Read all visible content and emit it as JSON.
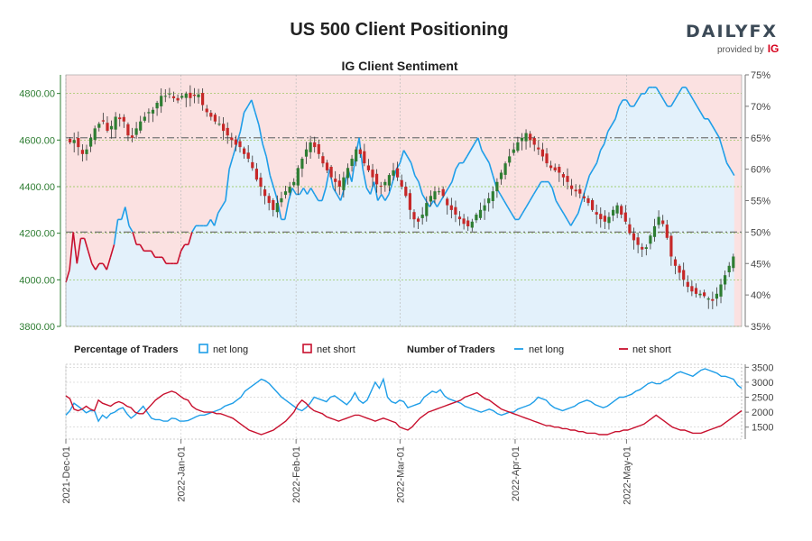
{
  "header": {
    "title": "US 500 Client Positioning",
    "logo_text": "DAILYFX",
    "logo_sub": "provided by",
    "logo_brand": "IG"
  },
  "colors": {
    "net_long": "#1f9ee8",
    "net_short": "#c8102e",
    "candle_up": "#2e7d32",
    "candle_down": "#c62828",
    "short_fill": "#fbe1e1",
    "long_fill": "#e3f1fb",
    "left_axis": "#2e7d32"
  },
  "chart_data": [
    {
      "type": "candlestick",
      "title": "IG Client Sentiment",
      "left_axis": {
        "ticks": [
          "3800.00",
          "4000.00",
          "4200.00",
          "4400.00",
          "4600.00",
          "4800.00"
        ],
        "ylim": [
          3800,
          4880
        ]
      },
      "right_axis": {
        "ticks": [
          "35%",
          "40%",
          "45%",
          "50%",
          "55%",
          "60%",
          "65%",
          "70%",
          "75%"
        ],
        "ylim": [
          35,
          75
        ],
        "unit": "%"
      },
      "reference_lines": [
        {
          "value": 50,
          "axis": "right"
        },
        {
          "value": 65,
          "axis": "right"
        }
      ],
      "x_range": [
        0,
        182
      ],
      "x_ticks": [
        {
          "x": 0,
          "label": "2021-Dec-01"
        },
        {
          "x": 31,
          "label": "2022-Jan-01"
        },
        {
          "x": 62,
          "label": "2022-Feb-01"
        },
        {
          "x": 90,
          "label": "2022-Mar-01"
        },
        {
          "x": 121,
          "label": "2022-Apr-01"
        },
        {
          "x": 151,
          "label": "2022-May-01"
        }
      ],
      "net_long_pct": [
        [
          0,
          42
        ],
        [
          1,
          44
        ],
        [
          2,
          50
        ],
        [
          3,
          45
        ],
        [
          4,
          49
        ],
        [
          5,
          49
        ],
        [
          6,
          47
        ],
        [
          7,
          45
        ],
        [
          8,
          44
        ],
        [
          9,
          45
        ],
        [
          10,
          45
        ],
        [
          11,
          44
        ],
        [
          12,
          46
        ],
        [
          13,
          48
        ],
        [
          14,
          52
        ],
        [
          15,
          52
        ],
        [
          16,
          54
        ],
        [
          17,
          51
        ],
        [
          18,
          50
        ],
        [
          19,
          48
        ],
        [
          20,
          48
        ],
        [
          21,
          47
        ],
        [
          22,
          47
        ],
        [
          23,
          47
        ],
        [
          24,
          46
        ],
        [
          25,
          46
        ],
        [
          26,
          46
        ],
        [
          27,
          45
        ],
        [
          28,
          45
        ],
        [
          29,
          45
        ],
        [
          30,
          45
        ],
        [
          31,
          47
        ],
        [
          32,
          48
        ],
        [
          33,
          48
        ],
        [
          34,
          50
        ],
        [
          35,
          51
        ],
        [
          36,
          51
        ],
        [
          37,
          51
        ],
        [
          38,
          51
        ],
        [
          39,
          52
        ],
        [
          40,
          51
        ],
        [
          41,
          53
        ],
        [
          42,
          54
        ],
        [
          43,
          55
        ],
        [
          44,
          60
        ],
        [
          45,
          62
        ],
        [
          46,
          64
        ],
        [
          47,
          66
        ],
        [
          48,
          69
        ],
        [
          49,
          70
        ],
        [
          50,
          71
        ],
        [
          51,
          69
        ],
        [
          52,
          67
        ],
        [
          53,
          64
        ],
        [
          54,
          62
        ],
        [
          55,
          59
        ],
        [
          56,
          57
        ],
        [
          57,
          55
        ],
        [
          58,
          52
        ],
        [
          59,
          52
        ],
        [
          60,
          55
        ],
        [
          61,
          57
        ],
        [
          62,
          56
        ],
        [
          63,
          56
        ],
        [
          64,
          57
        ],
        [
          65,
          56
        ],
        [
          66,
          57
        ],
        [
          67,
          56
        ],
        [
          68,
          55
        ],
        [
          69,
          55
        ],
        [
          70,
          57
        ],
        [
          71,
          60
        ],
        [
          72,
          57
        ],
        [
          73,
          56
        ],
        [
          74,
          55
        ],
        [
          75,
          57
        ],
        [
          76,
          60
        ],
        [
          77,
          58
        ],
        [
          78,
          62
        ],
        [
          79,
          65
        ],
        [
          80,
          60
        ],
        [
          81,
          57
        ],
        [
          82,
          56
        ],
        [
          83,
          58
        ],
        [
          84,
          55
        ],
        [
          85,
          56
        ],
        [
          86,
          55
        ],
        [
          87,
          56
        ],
        [
          88,
          58
        ],
        [
          89,
          60
        ],
        [
          90,
          61
        ],
        [
          91,
          63
        ],
        [
          92,
          62
        ],
        [
          93,
          61
        ],
        [
          94,
          59
        ],
        [
          95,
          58
        ],
        [
          96,
          56
        ],
        [
          97,
          55
        ],
        [
          98,
          54
        ],
        [
          99,
          55
        ],
        [
          100,
          54
        ],
        [
          101,
          55
        ],
        [
          102,
          56
        ],
        [
          103,
          57
        ],
        [
          104,
          58
        ],
        [
          105,
          60
        ],
        [
          106,
          61
        ],
        [
          107,
          61
        ],
        [
          108,
          62
        ],
        [
          109,
          63
        ],
        [
          110,
          64
        ],
        [
          111,
          65
        ],
        [
          112,
          63
        ],
        [
          113,
          62
        ],
        [
          114,
          61
        ],
        [
          115,
          59
        ],
        [
          116,
          57
        ],
        [
          117,
          56
        ],
        [
          118,
          55
        ],
        [
          119,
          54
        ],
        [
          120,
          53
        ],
        [
          121,
          52
        ],
        [
          122,
          52
        ],
        [
          123,
          53
        ],
        [
          124,
          54
        ],
        [
          125,
          55
        ],
        [
          126,
          56
        ],
        [
          127,
          57
        ],
        [
          128,
          58
        ],
        [
          129,
          58
        ],
        [
          130,
          58
        ],
        [
          131,
          57
        ],
        [
          132,
          55
        ],
        [
          133,
          54
        ],
        [
          134,
          53
        ],
        [
          135,
          52
        ],
        [
          136,
          51
        ],
        [
          137,
          52
        ],
        [
          138,
          53
        ],
        [
          139,
          55
        ],
        [
          140,
          57
        ],
        [
          141,
          59
        ],
        [
          142,
          60
        ],
        [
          143,
          61
        ],
        [
          144,
          63
        ],
        [
          145,
          64
        ],
        [
          146,
          66
        ],
        [
          147,
          67
        ],
        [
          148,
          68
        ],
        [
          149,
          70
        ],
        [
          150,
          71
        ],
        [
          151,
          71
        ],
        [
          152,
          70
        ],
        [
          153,
          70
        ],
        [
          154,
          71
        ],
        [
          155,
          72
        ],
        [
          156,
          72
        ],
        [
          157,
          73
        ],
        [
          158,
          73
        ],
        [
          159,
          73
        ],
        [
          160,
          72
        ],
        [
          161,
          71
        ],
        [
          162,
          70
        ],
        [
          163,
          70
        ],
        [
          164,
          71
        ],
        [
          165,
          72
        ],
        [
          166,
          73
        ],
        [
          167,
          73
        ],
        [
          168,
          72
        ],
        [
          169,
          71
        ],
        [
          170,
          70
        ],
        [
          171,
          69
        ],
        [
          172,
          68
        ],
        [
          173,
          68
        ],
        [
          174,
          67
        ],
        [
          175,
          66
        ],
        [
          176,
          65
        ],
        [
          177,
          63
        ],
        [
          178,
          61
        ],
        [
          179,
          60
        ],
        [
          180,
          59
        ]
      ],
      "price": [
        4590,
        4600,
        4570,
        4540,
        4560,
        4610,
        4650,
        4670,
        4680,
        4640,
        4660,
        4700,
        4690,
        4680,
        4620,
        4610,
        4650,
        4680,
        4700,
        4720,
        4730,
        4760,
        4790,
        4790,
        4800,
        4780,
        4770,
        4790,
        4800,
        4780,
        4790,
        4796,
        4750,
        4720,
        4700,
        4680,
        4670,
        4640,
        4620,
        4600,
        4580,
        4570,
        4540,
        4520,
        4480,
        4430,
        4400,
        4360,
        4330,
        4300,
        4330,
        4350,
        4380,
        4400,
        4420,
        4480,
        4520,
        4560,
        4590,
        4570,
        4540,
        4500,
        4470,
        4440,
        4420,
        4400,
        4440,
        4480,
        4520,
        4560,
        4540,
        4500,
        4470,
        4440,
        4410,
        4400,
        4420,
        4450,
        4470,
        4440,
        4400,
        4360,
        4300,
        4260,
        4250,
        4280,
        4330,
        4360,
        4380,
        4380,
        4360,
        4320,
        4300,
        4280,
        4260,
        4240,
        4230,
        4250,
        4280,
        4300,
        4320,
        4350,
        4380,
        4420,
        4460,
        4500,
        4530,
        4560,
        4590,
        4610,
        4630,
        4600,
        4580,
        4560,
        4530,
        4500,
        4480,
        4470,
        4460,
        4440,
        4420,
        4390,
        4380,
        4370,
        4350,
        4330,
        4300,
        4280,
        4260,
        4250,
        4270,
        4300,
        4320,
        4280,
        4250,
        4200,
        4170,
        4150,
        4130,
        4140,
        4190,
        4230,
        4270,
        4240,
        4180,
        4100,
        4060,
        4030,
        4000,
        3970,
        3950,
        3940,
        3940,
        3930,
        3920,
        3910,
        3940,
        3980,
        4020,
        4060,
        4100
      ],
      "legend": {
        "pct_title": "Percentage of Traders",
        "num_title": "Number of Traders",
        "long_label": "net long",
        "short_label": "net short"
      }
    },
    {
      "type": "line",
      "y_ticks": [
        "1500",
        "2000",
        "2500",
        "3000",
        "3500"
      ],
      "ylim": [
        1100,
        3600
      ],
      "series": [
        {
          "name": "net long",
          "values": [
            1900,
            2050,
            2300,
            2200,
            2100,
            1980,
            2050,
            2050,
            1700,
            1900,
            1800,
            1950,
            2000,
            2100,
            2150,
            1950,
            1800,
            1900,
            2050,
            2200,
            2000,
            1800,
            1750,
            1750,
            1700,
            1700,
            1800,
            1780,
            1700,
            1700,
            1720,
            1780,
            1850,
            1900,
            1900,
            1950,
            2000,
            2050,
            2100,
            2200,
            2250,
            2300,
            2400,
            2500,
            2700,
            2800,
            2900,
            3000,
            3100,
            3050,
            2950,
            2800,
            2650,
            2500,
            2400,
            2300,
            2200,
            2100,
            2050,
            2150,
            2300,
            2500,
            2450,
            2400,
            2350,
            2500,
            2550,
            2450,
            2350,
            2250,
            2400,
            2650,
            2400,
            2300,
            2400,
            2700,
            3000,
            2800,
            3100,
            2500,
            2350,
            2300,
            2400,
            2350,
            2150,
            2200,
            2250,
            2300,
            2500,
            2600,
            2700,
            2650,
            2750,
            2550,
            2450,
            2400,
            2350,
            2300,
            2200,
            2150,
            2100,
            2050,
            2000,
            2050,
            2100,
            2050,
            1950,
            1900,
            1950,
            2000,
            2000,
            2100,
            2150,
            2200,
            2250,
            2350,
            2500,
            2450,
            2400,
            2250,
            2150,
            2100,
            2050,
            2100,
            2150,
            2200,
            2300,
            2350,
            2400,
            2350,
            2250,
            2200,
            2150,
            2200,
            2300,
            2400,
            2500,
            2500,
            2550,
            2600,
            2700,
            2750,
            2850,
            2950,
            3000,
            2950,
            2950,
            3050,
            3100,
            3200,
            3300,
            3350,
            3300,
            3250,
            3200,
            3300,
            3400,
            3450,
            3400,
            3350,
            3300,
            3200,
            3200,
            3150,
            3100,
            2900,
            2800
          ]
        },
        {
          "name": "net short",
          "values": [
            2550,
            2450,
            2100,
            2050,
            2100,
            2200,
            2100,
            2050,
            2400,
            2300,
            2250,
            2200,
            2300,
            2350,
            2300,
            2200,
            2150,
            2000,
            1950,
            1950,
            2100,
            2250,
            2400,
            2500,
            2600,
            2650,
            2700,
            2650,
            2550,
            2450,
            2400,
            2200,
            2100,
            2050,
            2000,
            2000,
            2000,
            1950,
            1950,
            1900,
            1850,
            1800,
            1700,
            1600,
            1500,
            1400,
            1350,
            1300,
            1250,
            1300,
            1350,
            1400,
            1500,
            1600,
            1700,
            1850,
            2000,
            2250,
            2400,
            2300,
            2150,
            2050,
            2000,
            1950,
            1850,
            1800,
            1750,
            1700,
            1750,
            1800,
            1850,
            1900,
            1900,
            1850,
            1800,
            1750,
            1700,
            1750,
            1800,
            1750,
            1700,
            1650,
            1500,
            1450,
            1400,
            1500,
            1650,
            1800,
            1900,
            2000,
            2050,
            2100,
            2150,
            2200,
            2250,
            2300,
            2350,
            2400,
            2500,
            2550,
            2600,
            2650,
            2550,
            2450,
            2400,
            2300,
            2200,
            2100,
            2050,
            2000,
            1950,
            1900,
            1850,
            1800,
            1750,
            1700,
            1650,
            1600,
            1550,
            1550,
            1500,
            1500,
            1450,
            1450,
            1400,
            1400,
            1350,
            1350,
            1300,
            1300,
            1300,
            1250,
            1250,
            1250,
            1300,
            1350,
            1350,
            1400,
            1400,
            1450,
            1500,
            1550,
            1600,
            1700,
            1800,
            1900,
            1800,
            1700,
            1600,
            1500,
            1450,
            1400,
            1400,
            1350,
            1300,
            1300,
            1300,
            1350,
            1400,
            1450,
            1500,
            1550,
            1650,
            1750,
            1850,
            1950,
            2050
          ]
        }
      ]
    }
  ]
}
